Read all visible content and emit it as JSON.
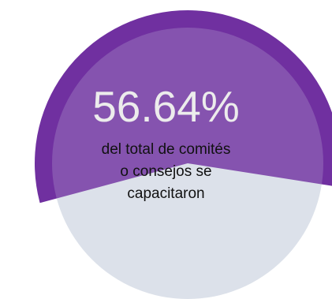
{
  "chart_data": {
    "type": "pie",
    "value_percent": 56.64,
    "value_label": "56.64%",
    "caption_lines": [
      "del total de comités",
      "o consejos se",
      "capacitaron"
    ],
    "colors": {
      "filled": "#7030a0",
      "base": "#dde2ea"
    }
  }
}
